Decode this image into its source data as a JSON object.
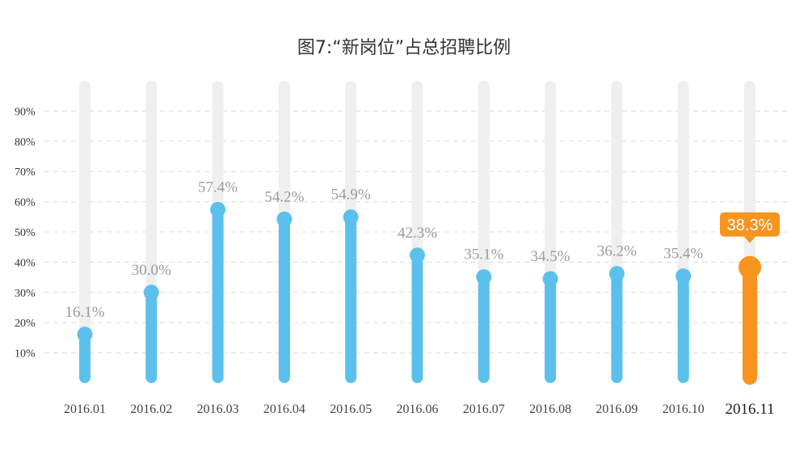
{
  "chart_data": {
    "type": "bar",
    "title": "图7:“新岗位”占总招聘比例",
    "categories": [
      "2016.01",
      "2016.02",
      "2016.03",
      "2016.04",
      "2016.05",
      "2016.06",
      "2016.07",
      "2016.08",
      "2016.09",
      "2016.10",
      "2016.11"
    ],
    "values": [
      16.1,
      30.0,
      57.4,
      54.2,
      54.9,
      42.3,
      35.1,
      34.5,
      36.2,
      35.4,
      38.3
    ],
    "value_labels": [
      "16.1%",
      "30.0%",
      "57.4%",
      "54.2%",
      "54.9%",
      "42.3%",
      "35.1%",
      "34.5%",
      "36.2%",
      "35.4%",
      "38.3%"
    ],
    "ytick_labels": [
      "10%",
      "20%",
      "30%",
      "40%",
      "50%",
      "60%",
      "70%",
      "80%",
      "90%"
    ],
    "ylim": [
      0,
      100
    ],
    "xlabel": "",
    "ylabel": "",
    "grid": true,
    "highlight_index": 10,
    "colors": {
      "bar": "#5bc0eb",
      "highlight": "#f7941e",
      "track": "#efefef",
      "grid": "#dcdcdc"
    }
  }
}
